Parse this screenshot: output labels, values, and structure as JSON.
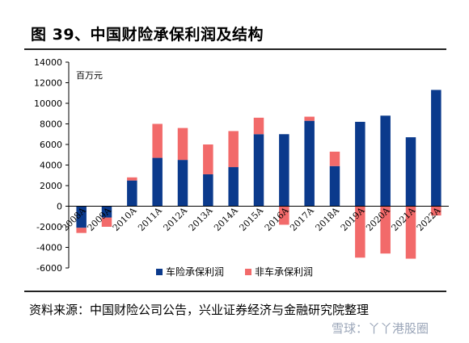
{
  "header": {
    "title": "图 39、中国财险承保利润及结构"
  },
  "footer": {
    "source": "资料来源：中国财险公司公告，兴业证券经济与金融研究院整理",
    "watermark": "雪球：丫丫港股圈"
  },
  "chart_data": {
    "type": "bar",
    "stacked": true,
    "unit_label": "百万元",
    "categories": [
      "2008A",
      "2009A",
      "2010A",
      "2011A",
      "2012A",
      "2013A",
      "2014A",
      "2015A",
      "2016A",
      "2017A",
      "2018A",
      "2019A",
      "2020A",
      "2021A",
      "2022A"
    ],
    "series": [
      {
        "name": "车险承保利润",
        "color": "#0b3a8c",
        "values": [
          -2100,
          -1100,
          2500,
          4700,
          4500,
          3100,
          3800,
          7000,
          7000,
          8300,
          3900,
          8200,
          8800,
          6700,
          11300
        ]
      },
      {
        "name": "非车承保利润",
        "color": "#f26a6a",
        "values": [
          -500,
          -900,
          300,
          3300,
          3100,
          2900,
          3500,
          1600,
          -1800,
          400,
          1400,
          -5000,
          -4600,
          -5100,
          -900
        ]
      }
    ],
    "ylim": [
      -6000,
      14000
    ],
    "yticks": [
      -6000,
      -4000,
      -2000,
      0,
      2000,
      4000,
      6000,
      8000,
      10000,
      12000,
      14000
    ],
    "legend_position": "bottom",
    "grid": false
  }
}
